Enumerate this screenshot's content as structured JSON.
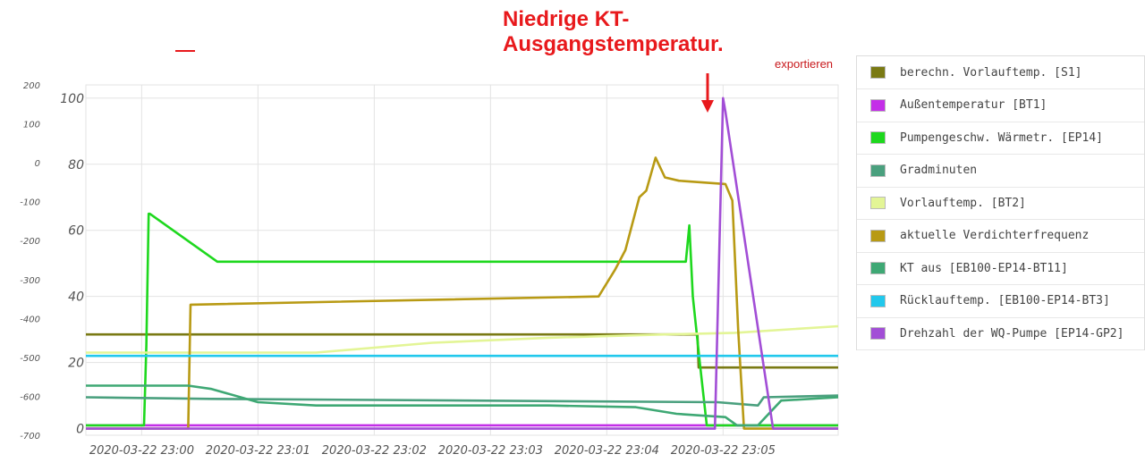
{
  "annotation": {
    "line1": "Niedrige KT-",
    "line2": "Ausgangstemperatur."
  },
  "export_label": "exportieren",
  "legend": [
    {
      "label": "berechn. Vorlauftemp. [S1]",
      "color": "#7a7a14"
    },
    {
      "label": "Außentemperatur [BT1]",
      "color": "#c42ee8"
    },
    {
      "label": "Pumpengeschw. Wärmetr. [EP14]",
      "color": "#1ed81e"
    },
    {
      "label": "Gradminuten",
      "color": "#4aa07e"
    },
    {
      "label": "Vorlauftemp. [BT2]",
      "color": "#e3f596"
    },
    {
      "label": "aktuelle Verdichterfrequenz",
      "color": "#b89a14"
    },
    {
      "label": "KT aus [EB100-EP14-BT11]",
      "color": "#3ea874"
    },
    {
      "label": "Rücklauftemp. [EB100-EP14-BT3]",
      "color": "#21c8ec"
    },
    {
      "label": "Drehzahl der WQ-Pumpe [EP14-GP2]",
      "color": "#a24ed6"
    }
  ],
  "chart_data": {
    "type": "line",
    "x_ticks": [
      "2020-03-22 23:00",
      "2020-03-22 23:01",
      "2020-03-22 23:02",
      "2020-03-22 23:03",
      "2020-03-22 23:04",
      "2020-03-22 23:05"
    ],
    "x_range_min": [
      -0.48,
      5.99
    ],
    "y_left_ticks": [
      "200",
      "100",
      "0",
      "-100",
      "-200",
      "-300",
      "-400",
      "-500",
      "-600",
      "-700"
    ],
    "y_right_ticks": [
      "100",
      "80",
      "60",
      "40",
      "20",
      "0"
    ],
    "y_right_range": [
      -2,
      104
    ],
    "grid": true,
    "series": [
      {
        "name": "berechn. Vorlauftemp. [S1]",
        "color": "#7a7a14",
        "points": [
          [
            -0.48,
            28.5
          ],
          [
            4.78,
            28.5
          ],
          [
            4.79,
            18.5
          ],
          [
            5.99,
            18.5
          ]
        ]
      },
      {
        "name": "Außentemperatur [BT1]",
        "color": "#c42ee8",
        "points": [
          [
            -0.48,
            1
          ],
          [
            5.99,
            1
          ]
        ]
      },
      {
        "name": "Pumpengeschw. Wärmetr. [EP14]",
        "color": "#1ed81e",
        "points": [
          [
            -0.48,
            1
          ],
          [
            0.02,
            1
          ],
          [
            0.04,
            25
          ],
          [
            0.06,
            65
          ],
          [
            0.07,
            65
          ],
          [
            0.65,
            50.5
          ],
          [
            4.68,
            50.5
          ],
          [
            4.71,
            61.5
          ],
          [
            4.74,
            40
          ],
          [
            4.8,
            20
          ],
          [
            4.86,
            1
          ],
          [
            5.99,
            1
          ]
        ]
      },
      {
        "name": "Gradminuten",
        "color": "#4aa07e",
        "points": [
          [
            -0.48,
            9.5
          ],
          [
            0.6,
            9
          ],
          [
            4.95,
            8
          ],
          [
            5.3,
            7
          ],
          [
            5.35,
            9.5
          ],
          [
            5.99,
            10
          ]
        ]
      },
      {
        "name": "Vorlauftemp. [BT2]",
        "color": "#e3f596",
        "points": [
          [
            -0.48,
            23
          ],
          [
            1.5,
            23
          ],
          [
            2.5,
            26
          ],
          [
            3.5,
            27.5
          ],
          [
            4.5,
            28.5
          ],
          [
            5.1,
            29
          ],
          [
            5.99,
            31
          ]
        ]
      },
      {
        "name": "aktuelle Verdichterfrequenz",
        "color": "#b89a14",
        "points": [
          [
            -0.48,
            0
          ],
          [
            0.4,
            0
          ],
          [
            0.42,
            37.5
          ],
          [
            3.93,
            40
          ],
          [
            4.07,
            48
          ],
          [
            4.16,
            54
          ],
          [
            4.28,
            70
          ],
          [
            4.34,
            72
          ],
          [
            4.42,
            82
          ],
          [
            4.5,
            76
          ],
          [
            4.62,
            75
          ],
          [
            5.02,
            74
          ],
          [
            5.08,
            69
          ],
          [
            5.13,
            30
          ],
          [
            5.18,
            0
          ],
          [
            5.99,
            0
          ]
        ]
      },
      {
        "name": "KT aus [EB100-EP14-BT11]",
        "color": "#3ea874",
        "points": [
          [
            -0.48,
            13
          ],
          [
            0.4,
            13
          ],
          [
            0.6,
            12
          ],
          [
            1.0,
            8
          ],
          [
            1.5,
            7
          ],
          [
            2.5,
            7
          ],
          [
            3.5,
            7
          ],
          [
            4.25,
            6.5
          ],
          [
            4.6,
            4.5
          ],
          [
            4.8,
            4
          ],
          [
            5.02,
            3.5
          ],
          [
            5.12,
            1
          ],
          [
            5.3,
            1
          ],
          [
            5.5,
            8.5
          ],
          [
            5.99,
            9.5
          ]
        ]
      },
      {
        "name": "Rücklauftemp. [EB100-EP14-BT3]",
        "color": "#21c8ec",
        "points": [
          [
            -0.48,
            22
          ],
          [
            5.99,
            22
          ]
        ]
      },
      {
        "name": "Drehzahl der WQ-Pumpe [EP14-GP2]",
        "color": "#a24ed6",
        "points": [
          [
            -0.48,
            0
          ],
          [
            4.93,
            0
          ],
          [
            5.0,
            100
          ],
          [
            5.02,
            96
          ],
          [
            5.43,
            0
          ],
          [
            5.99,
            0
          ]
        ]
      }
    ]
  }
}
